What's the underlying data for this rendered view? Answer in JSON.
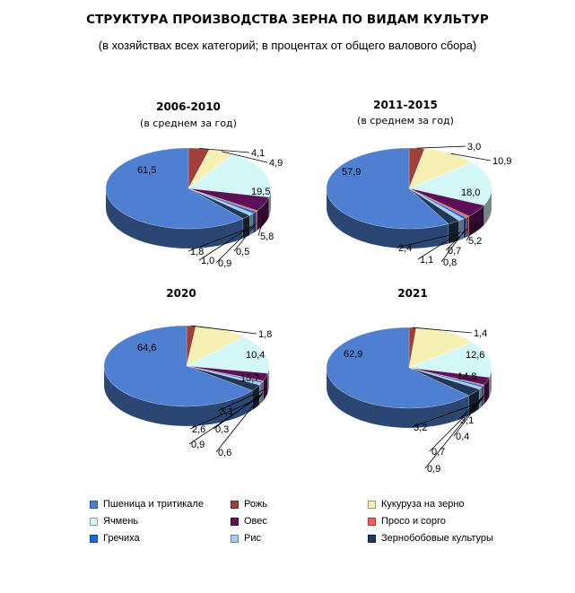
{
  "title": "СТРУКТУРА ПРОИЗВОДСТВА ЗЕРНА ПО ВИДАМ КУЛЬТУР",
  "subtitle": "(в хозяйствах всех категорий; в процентах от общего валового сбора)",
  "chart_data": {
    "type": "pie",
    "categories": [
      "Пшеница и тритикале",
      "Рожь",
      "Кукуруза на зерно",
      "Ячмень",
      "Овес",
      "Просо и сорго",
      "Гречиха",
      "Рис",
      "Зернобобовые культуры"
    ],
    "colors": [
      "#4f7fd1",
      "#a0403a",
      "#f6f1b2",
      "#d3f7f7",
      "#5a1158",
      "#f06058",
      "#1a6ad8",
      "#a6ccf2",
      "#1f3855"
    ],
    "pies": [
      {
        "title": "2006-2010",
        "subtitle": "(в среднем за год)",
        "values": [
          61.5,
          4.1,
          4.9,
          19.5,
          5.8,
          0.5,
          0.9,
          1.0,
          1.8
        ],
        "labels": [
          "61,5",
          "4,1",
          "4,9",
          "19,5",
          "5,8",
          "0,5",
          "0,9",
          "1,0",
          "1,8"
        ]
      },
      {
        "title": "2011-2015",
        "subtitle": "(в среднем за год)",
        "values": [
          57.9,
          3.0,
          10.9,
          18.0,
          5.2,
          0.7,
          0.8,
          1.1,
          2.4
        ],
        "labels": [
          "57,9",
          "3,0",
          "10,9",
          "18,0",
          "5,2",
          "0,7",
          "0,8",
          "1,1",
          "2,4"
        ]
      },
      {
        "title": "2020",
        "subtitle": "",
        "values": [
          64.6,
          1.8,
          10.4,
          15.7,
          3.1,
          0.3,
          0.6,
          0.9,
          2.6
        ],
        "labels": [
          "64,6",
          "1,8",
          "10,4",
          "15,7",
          "3,1",
          "0,3",
          "0,6",
          "0,9",
          "2,6"
        ]
      },
      {
        "title": "2021",
        "subtitle": "",
        "values": [
          62.9,
          1.4,
          12.6,
          14.8,
          3.1,
          0.4,
          0.7,
          0.9,
          3.2
        ],
        "labels": [
          "62,9",
          "1,4",
          "12,6",
          "14,8",
          "3,1",
          "0,4",
          "0,7",
          "0,9",
          "3,2"
        ]
      }
    ],
    "legend_position": "bottom"
  }
}
